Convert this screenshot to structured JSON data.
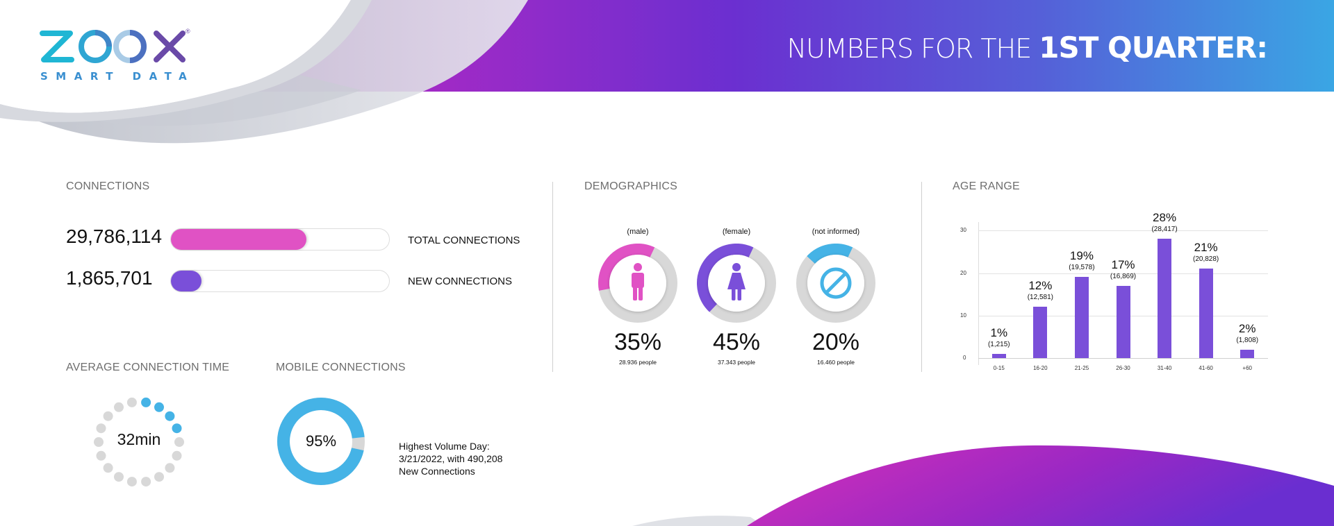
{
  "brand": {
    "logo_text": "ZOOX",
    "logo_subtitle": "SMART DATA",
    "registered_mark": "®",
    "colors": {
      "cyan": "#1fb6d4",
      "blue": "#3f86c8",
      "purple": "#6a4aa8"
    }
  },
  "header": {
    "title_light": "NUMBERS FOR  THE ",
    "title_bold": "1ST QUARTER:",
    "gradient": [
      "#b52ab5",
      "#6b2fd0",
      "#3aa6e4"
    ]
  },
  "connections": {
    "label": "CONNECTIONS",
    "rows": [
      {
        "value": "29,786,114",
        "label": "TOTAL CONNECTIONS",
        "fill_percent": 62,
        "color": "#e052c4"
      },
      {
        "value": "1,865,701",
        "label": "NEW CONNECTIONS",
        "fill_percent": 14,
        "color": "#7a4fd9"
      }
    ]
  },
  "average_connection_time": {
    "label": "AVERAGE CONNECTION TIME",
    "value": "32min",
    "dots_total": 18,
    "dots_active": 4,
    "active_color": "#45b3e6",
    "inactive_color": "#d8d8d8"
  },
  "mobile_connections": {
    "label": "MOBILE CONNECTIONS",
    "value": "95%",
    "percent": 95,
    "color": "#45b3e6",
    "note_lines": [
      "Highest Volume Day:",
      "3/21/2022, with 490,208",
      "New Connections"
    ]
  },
  "demographics": {
    "label": "DEMOGRAPHICS",
    "items": [
      {
        "caption": "(male)",
        "percent_label": "35%",
        "percent": 35,
        "people": "28.936 people",
        "color": "#e052c4",
        "icon": "male-icon"
      },
      {
        "caption": "(female)",
        "percent_label": "45%",
        "percent": 45,
        "people": "37.343 people",
        "color": "#7a4fd9",
        "icon": "female-icon"
      },
      {
        "caption": "(not informed)",
        "percent_label": "20%",
        "percent": 20,
        "people": "16.460 people",
        "color": "#45b3e6",
        "icon": "prohibited-icon"
      }
    ]
  },
  "age_range": {
    "label": "AGE RANGE"
  },
  "chart_data": {
    "type": "bar",
    "title": "AGE RANGE",
    "categories": [
      "0-15",
      "16-20",
      "21-25",
      "26-30",
      "31-40",
      "41-60",
      "+60"
    ],
    "values": [
      1,
      12,
      19,
      17,
      28,
      21,
      2
    ],
    "value_labels": [
      "1%",
      "12%",
      "19%",
      "17%",
      "28%",
      "21%",
      "2%"
    ],
    "count_labels": [
      "(1,215)",
      "(12,581)",
      "(19,578)",
      "(16,869)",
      "(28,417)",
      "(20,828)",
      "(1,808)"
    ],
    "yticks": [
      "0",
      "10",
      "20",
      "30"
    ],
    "ylim": [
      0,
      30
    ],
    "xlabel": "",
    "ylabel": "",
    "grid": true,
    "bar_color": "#7a4fd9"
  }
}
